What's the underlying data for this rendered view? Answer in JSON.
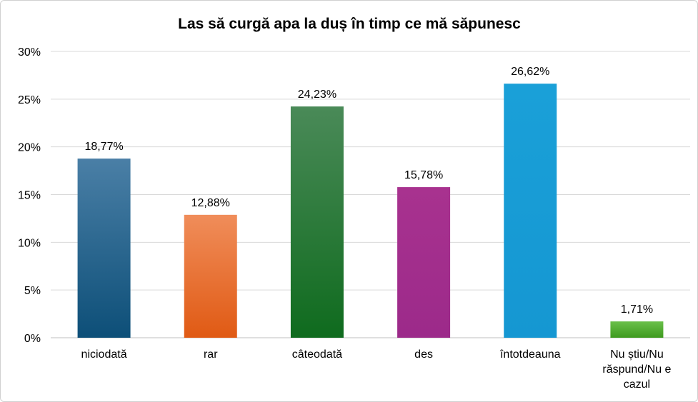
{
  "chart_data": {
    "type": "bar",
    "title": "Las să curgă apa la duș în timp ce mă săpunesc",
    "xlabel": "",
    "ylabel": "",
    "categories": [
      [
        "niciodată"
      ],
      [
        "rar"
      ],
      [
        "câteodată"
      ],
      [
        "des"
      ],
      [
        "întotdeauna"
      ],
      [
        "Nu știu/Nu",
        "răspund/Nu e",
        "cazul"
      ]
    ],
    "values": [
      18.77,
      12.88,
      24.23,
      15.78,
      26.62,
      1.71
    ],
    "value_labels": [
      "18,77%",
      "12,88%",
      "24,23%",
      "15,78%",
      "26,62%",
      "1,71%"
    ],
    "ylim": [
      0,
      30
    ],
    "yticks": [
      0,
      5,
      10,
      15,
      20,
      25,
      30
    ],
    "ytick_labels": [
      "0%",
      "5%",
      "10%",
      "15%",
      "20%",
      "25%",
      "30%"
    ],
    "grid": true,
    "legend": "none",
    "bar_colors": [
      [
        "#4a7fa6",
        "#0d4f78"
      ],
      [
        "#f08d5a",
        "#e05a14"
      ],
      [
        "#4a8a58",
        "#0f6b1e"
      ],
      [
        "#a8328f",
        "#9c2a8a"
      ],
      [
        "#1aa0d8",
        "#1597d2"
      ],
      [
        "#6ac04a",
        "#3e9a1f"
      ]
    ]
  }
}
